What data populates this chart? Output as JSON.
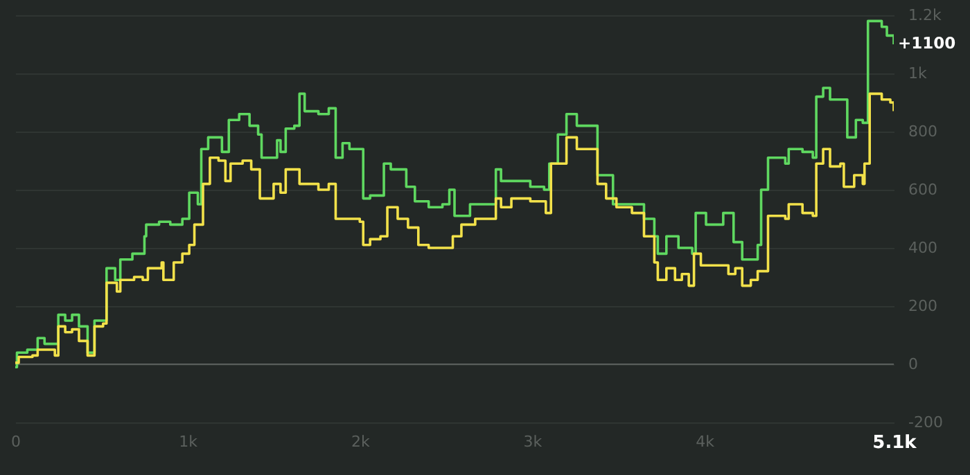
{
  "chart_data": {
    "type": "step",
    "xlim": [
      0,
      5100
    ],
    "ylim": [
      -200,
      1200
    ],
    "xticks": [
      {
        "value": 0,
        "label": "0"
      },
      {
        "value": 1000,
        "label": "1k"
      },
      {
        "value": 2000,
        "label": "2k"
      },
      {
        "value": 3000,
        "label": "3k"
      },
      {
        "value": 4000,
        "label": "4k"
      },
      {
        "value": 5100,
        "label": "5.1k"
      }
    ],
    "yticks": [
      {
        "value": -200,
        "label": "-200"
      },
      {
        "value": 0,
        "label": "0"
      },
      {
        "value": 200,
        "label": "200"
      },
      {
        "value": 400,
        "label": "400"
      },
      {
        "value": 600,
        "label": "600"
      },
      {
        "value": 800,
        "label": "800"
      },
      {
        "value": 1000,
        "label": "1k"
      },
      {
        "value": 1200,
        "label": "1.2k"
      }
    ],
    "grid": "y",
    "line_style": "solid",
    "marker": "none",
    "ref_lines": [
      {
        "axis": "y",
        "value": 0,
        "color": "#5a5f5c"
      }
    ],
    "annotations": [
      {
        "text": "+1100",
        "x": 5100,
        "y": 1100
      }
    ],
    "series": [
      {
        "color": "#5fd860",
        "x": [
          0,
          10,
          70,
          130,
          170,
          220,
          250,
          290,
          330,
          370,
          420,
          460,
          520,
          530,
          580,
          610,
          680,
          720,
          750,
          760,
          835,
          900,
          970,
          1010,
          1060,
          1080,
          1120,
          1160,
          1200,
          1240,
          1300,
          1360,
          1410,
          1430,
          1480,
          1520,
          1540,
          1570,
          1620,
          1650,
          1680,
          1760,
          1820,
          1860,
          1900,
          1940,
          2000,
          2020,
          2060,
          2140,
          2180,
          2270,
          2320,
          2400,
          2480,
          2520,
          2550,
          2640,
          2720,
          2790,
          2820,
          2880,
          2990,
          3070,
          3100,
          3150,
          3200,
          3260,
          3350,
          3380,
          3430,
          3470,
          3580,
          3650,
          3710,
          3730,
          3780,
          3850,
          3930,
          3950,
          4010,
          4110,
          4170,
          4220,
          4310,
          4330,
          4370,
          4470,
          4490,
          4570,
          4630,
          4650,
          4690,
          4730,
          4790,
          4830,
          4880,
          4920,
          4950,
          5030,
          5060,
          5100
        ],
        "values": [
          -10,
          40,
          50,
          90,
          70,
          70,
          170,
          150,
          170,
          130,
          40,
          150,
          150,
          330,
          290,
          360,
          380,
          380,
          440,
          480,
          490,
          480,
          500,
          590,
          550,
          740,
          780,
          780,
          730,
          840,
          860,
          820,
          790,
          710,
          710,
          770,
          730,
          810,
          820,
          930,
          870,
          860,
          880,
          710,
          760,
          740,
          740,
          570,
          580,
          690,
          670,
          610,
          560,
          540,
          550,
          600,
          510,
          550,
          550,
          670,
          630,
          630,
          610,
          600,
          690,
          790,
          860,
          820,
          820,
          650,
          650,
          550,
          550,
          500,
          440,
          380,
          440,
          400,
          380,
          520,
          480,
          520,
          420,
          360,
          410,
          600,
          710,
          690,
          740,
          730,
          710,
          920,
          950,
          910,
          910,
          780,
          840,
          830,
          1180,
          1160,
          1130,
          1100
        ]
      },
      {
        "color": "#f2e14a",
        "x": [
          0,
          20,
          100,
          130,
          180,
          230,
          250,
          290,
          330,
          370,
          420,
          460,
          510,
          530,
          590,
          610,
          690,
          740,
          770,
          850,
          860,
          920,
          970,
          1010,
          1040,
          1090,
          1130,
          1180,
          1220,
          1250,
          1320,
          1370,
          1420,
          1460,
          1500,
          1540,
          1570,
          1620,
          1650,
          1680,
          1760,
          1820,
          1860,
          1900,
          1940,
          2000,
          2020,
          2060,
          2120,
          2160,
          2220,
          2280,
          2340,
          2400,
          2500,
          2540,
          2590,
          2670,
          2720,
          2790,
          2820,
          2880,
          2990,
          3080,
          3110,
          3160,
          3200,
          3260,
          3350,
          3380,
          3430,
          3490,
          3580,
          3650,
          3710,
          3730,
          3780,
          3830,
          3870,
          3910,
          3940,
          3980,
          4100,
          4140,
          4180,
          4220,
          4270,
          4310,
          4370,
          4470,
          4490,
          4570,
          4630,
          4650,
          4690,
          4730,
          4790,
          4810,
          4870,
          4920,
          4930,
          4960,
          5030,
          5080,
          5100
        ],
        "values": [
          5,
          25,
          30,
          50,
          50,
          30,
          130,
          110,
          120,
          80,
          30,
          130,
          140,
          280,
          250,
          290,
          300,
          290,
          330,
          350,
          290,
          350,
          380,
          410,
          480,
          620,
          710,
          700,
          630,
          690,
          700,
          670,
          570,
          570,
          620,
          590,
          670,
          670,
          620,
          620,
          600,
          620,
          500,
          500,
          500,
          490,
          410,
          430,
          440,
          540,
          500,
          470,
          410,
          400,
          400,
          440,
          480,
          500,
          500,
          570,
          540,
          570,
          560,
          520,
          690,
          690,
          780,
          740,
          740,
          620,
          570,
          540,
          520,
          440,
          350,
          290,
          330,
          290,
          310,
          270,
          380,
          340,
          340,
          310,
          330,
          270,
          290,
          320,
          510,
          500,
          550,
          520,
          510,
          690,
          740,
          680,
          690,
          610,
          650,
          620,
          690,
          930,
          910,
          900,
          870
        ]
      }
    ]
  }
}
